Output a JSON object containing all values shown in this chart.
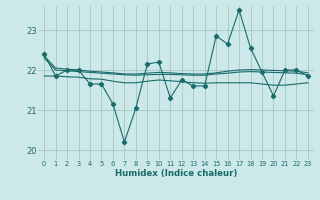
{
  "xlabel": "Humidex (Indice chaleur)",
  "bg_color": "#cce8e8",
  "grid_color": "#9bbfbf",
  "line_color": "#1a6b6b",
  "xlim": [
    -0.5,
    23.5
  ],
  "ylim": [
    19.75,
    23.6
  ],
  "yticks": [
    20,
    21,
    22,
    23
  ],
  "xticks": [
    0,
    1,
    2,
    3,
    4,
    5,
    6,
    7,
    8,
    9,
    10,
    11,
    12,
    13,
    14,
    15,
    16,
    17,
    18,
    19,
    20,
    21,
    22,
    23
  ],
  "main_line": [
    22.4,
    21.85,
    22.0,
    22.0,
    21.65,
    21.65,
    21.15,
    20.2,
    21.05,
    22.15,
    22.2,
    21.3,
    21.75,
    21.6,
    21.6,
    22.85,
    22.65,
    23.5,
    22.55,
    21.95,
    21.35,
    22.0,
    22.0,
    21.85
  ],
  "smooth1": [
    22.3,
    22.0,
    21.98,
    21.96,
    21.94,
    21.92,
    21.9,
    21.88,
    21.87,
    21.88,
    21.89,
    21.89,
    21.88,
    21.87,
    21.87,
    21.9,
    21.92,
    21.95,
    21.96,
    21.95,
    21.94,
    21.93,
    21.92,
    21.88
  ],
  "smooth2": [
    22.35,
    22.05,
    22.02,
    22.0,
    21.97,
    21.95,
    21.93,
    21.9,
    21.9,
    21.92,
    21.94,
    21.93,
    21.91,
    21.9,
    21.9,
    21.93,
    21.97,
    22.0,
    22.01,
    22.0,
    21.99,
    21.98,
    21.97,
    21.93
  ],
  "flat_line": [
    21.85,
    21.85,
    21.83,
    21.82,
    21.78,
    21.77,
    21.72,
    21.68,
    21.68,
    21.72,
    21.75,
    21.73,
    21.71,
    21.68,
    21.67,
    21.68,
    21.68,
    21.68,
    21.68,
    21.65,
    21.62,
    21.62,
    21.65,
    21.68
  ]
}
